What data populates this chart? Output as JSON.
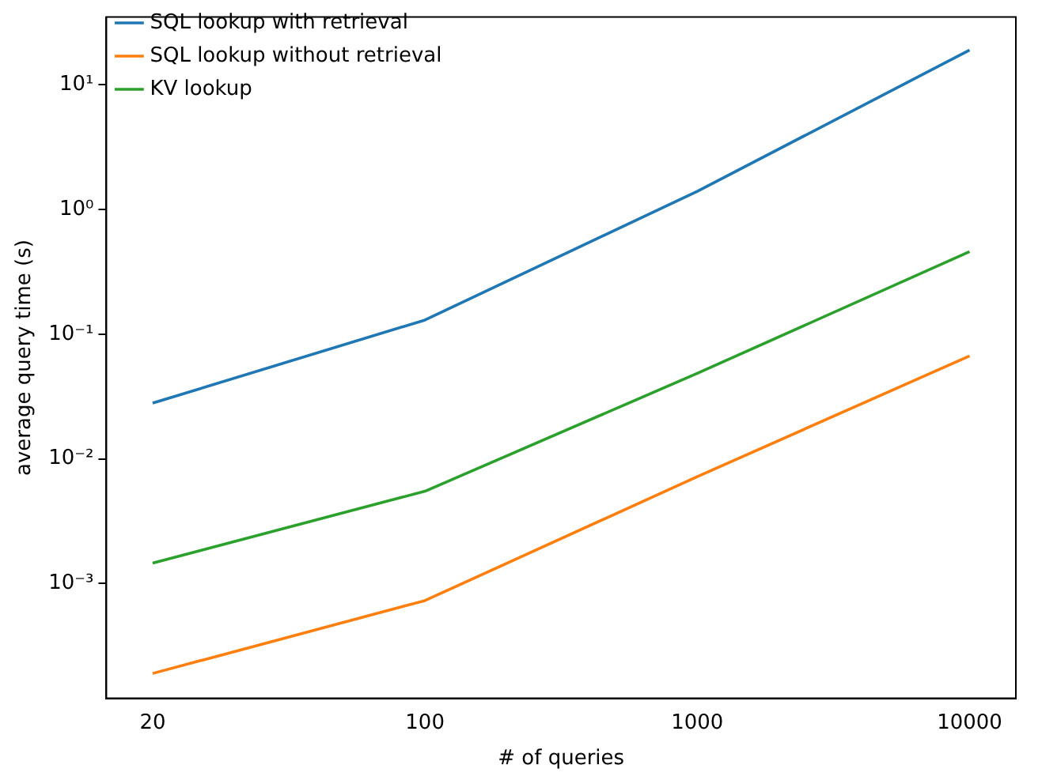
{
  "chart_data": {
    "type": "line",
    "xlabel": "# of queries",
    "ylabel": "average query time (s)",
    "categories": [
      "20",
      "100",
      "1000",
      "10000"
    ],
    "series": [
      {
        "name": "SQL lookup with retrieval",
        "color": "#1f77b4",
        "values": [
          0.028,
          0.13,
          1.4,
          19
        ]
      },
      {
        "name": "SQL lookup without retrieval",
        "color": "#ff7f0e",
        "values": [
          0.00019,
          0.00073,
          0.0072,
          0.067
        ]
      },
      {
        "name": "KV lookup",
        "color": "#2ca02c",
        "values": [
          0.00146,
          0.0055,
          0.0485,
          0.46
        ]
      }
    ],
    "log": "y",
    "ylim": [
      0.00012,
      35
    ],
    "yticks": [
      {
        "value": 0.001,
        "label": "10⁻³"
      },
      {
        "value": 0.01,
        "label": "10⁻²"
      },
      {
        "value": 0.1,
        "label": "10⁻¹"
      },
      {
        "value": 1,
        "label": "10⁰"
      },
      {
        "value": 10,
        "label": "10¹"
      }
    ],
    "grid": false,
    "legend": "top left",
    "marker": "none",
    "line_style": "solid"
  }
}
